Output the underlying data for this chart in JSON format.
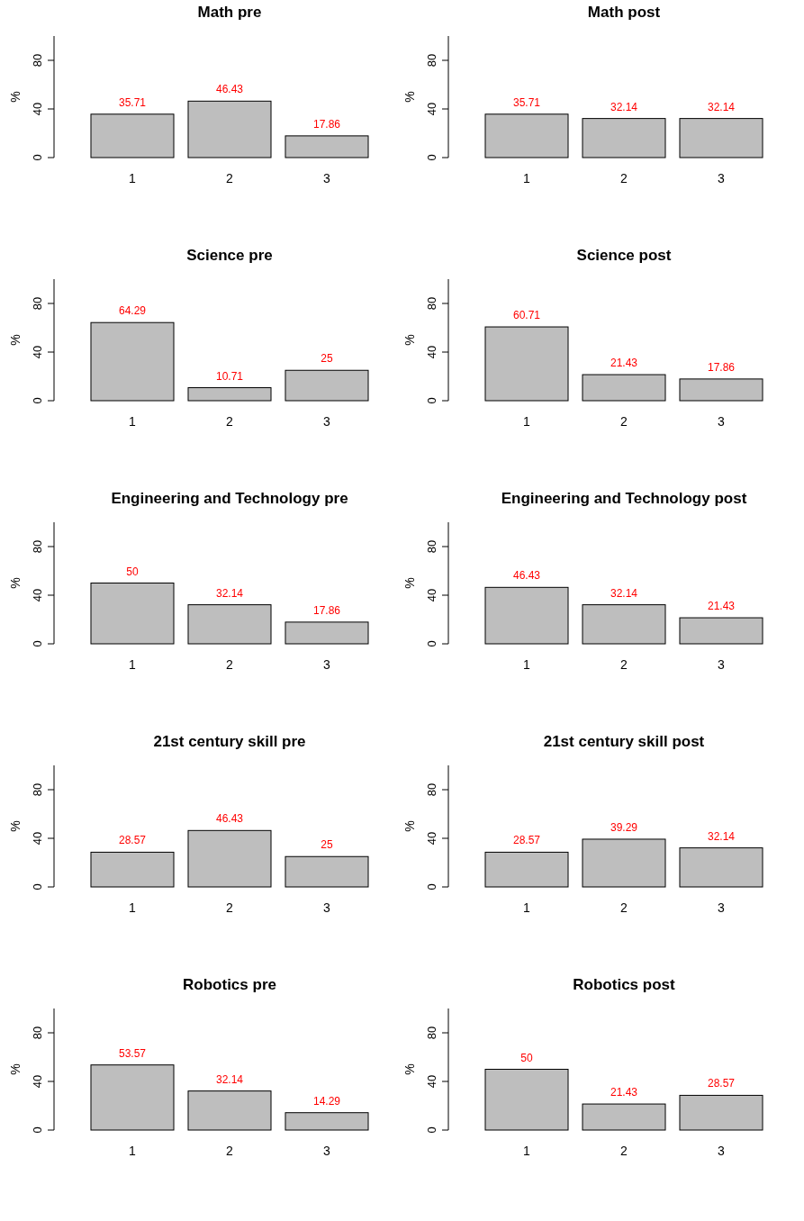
{
  "chart_data": [
    {
      "type": "bar",
      "title": "Math pre",
      "ylabel": "%",
      "categories": [
        "1",
        "2",
        "3"
      ],
      "values": [
        35.71,
        46.43,
        17.86
      ],
      "color": "#bebebe",
      "ylim": [
        0,
        100
      ],
      "yticks": [
        0,
        40,
        80
      ],
      "data_labels": true,
      "grid": false
    },
    {
      "type": "bar",
      "title": "Math post",
      "ylabel": "%",
      "categories": [
        "1",
        "2",
        "3"
      ],
      "values": [
        35.71,
        32.14,
        32.14
      ],
      "color": "#bebebe",
      "ylim": [
        0,
        100
      ],
      "yticks": [
        0,
        40,
        80
      ],
      "data_labels": true,
      "grid": false
    },
    {
      "type": "bar",
      "title": "Science pre",
      "ylabel": "%",
      "categories": [
        "1",
        "2",
        "3"
      ],
      "values": [
        64.29,
        10.71,
        25
      ],
      "color": "#bebebe",
      "ylim": [
        0,
        100
      ],
      "yticks": [
        0,
        40,
        80
      ],
      "data_labels": true,
      "grid": false
    },
    {
      "type": "bar",
      "title": "Science post",
      "ylabel": "%",
      "categories": [
        "1",
        "2",
        "3"
      ],
      "values": [
        60.71,
        21.43,
        17.86
      ],
      "color": "#bebebe",
      "ylim": [
        0,
        100
      ],
      "yticks": [
        0,
        40,
        80
      ],
      "data_labels": true,
      "grid": false
    },
    {
      "type": "bar",
      "title": "Engineering and Technology pre",
      "ylabel": "%",
      "categories": [
        "1",
        "2",
        "3"
      ],
      "values": [
        50,
        32.14,
        17.86
      ],
      "color": "#bebebe",
      "ylim": [
        0,
        100
      ],
      "yticks": [
        0,
        40,
        80
      ],
      "data_labels": true,
      "grid": false
    },
    {
      "type": "bar",
      "title": "Engineering and Technology post",
      "ylabel": "%",
      "categories": [
        "1",
        "2",
        "3"
      ],
      "values": [
        46.43,
        32.14,
        21.43
      ],
      "color": "#bebebe",
      "ylim": [
        0,
        100
      ],
      "yticks": [
        0,
        40,
        80
      ],
      "data_labels": true,
      "grid": false
    },
    {
      "type": "bar",
      "title": "21st century skill pre",
      "ylabel": "%",
      "categories": [
        "1",
        "2",
        "3"
      ],
      "values": [
        28.57,
        46.43,
        25
      ],
      "color": "#bebebe",
      "ylim": [
        0,
        100
      ],
      "yticks": [
        0,
        40,
        80
      ],
      "data_labels": true,
      "grid": false
    },
    {
      "type": "bar",
      "title": "21st century skill post",
      "ylabel": "%",
      "categories": [
        "1",
        "2",
        "3"
      ],
      "values": [
        28.57,
        39.29,
        32.14
      ],
      "color": "#bebebe",
      "ylim": [
        0,
        100
      ],
      "yticks": [
        0,
        40,
        80
      ],
      "data_labels": true,
      "grid": false
    },
    {
      "type": "bar",
      "title": "Robotics pre",
      "ylabel": "%",
      "categories": [
        "1",
        "2",
        "3"
      ],
      "values": [
        53.57,
        32.14,
        14.29
      ],
      "color": "#bebebe",
      "ylim": [
        0,
        100
      ],
      "yticks": [
        0,
        40,
        80
      ],
      "data_labels": true,
      "grid": false
    },
    {
      "type": "bar",
      "title": "Robotics post",
      "ylabel": "%",
      "categories": [
        "1",
        "2",
        "3"
      ],
      "values": [
        50,
        21.43,
        28.57
      ],
      "color": "#bebebe",
      "ylim": [
        0,
        100
      ],
      "yticks": [
        0,
        40,
        80
      ],
      "data_labels": true,
      "grid": false
    }
  ]
}
